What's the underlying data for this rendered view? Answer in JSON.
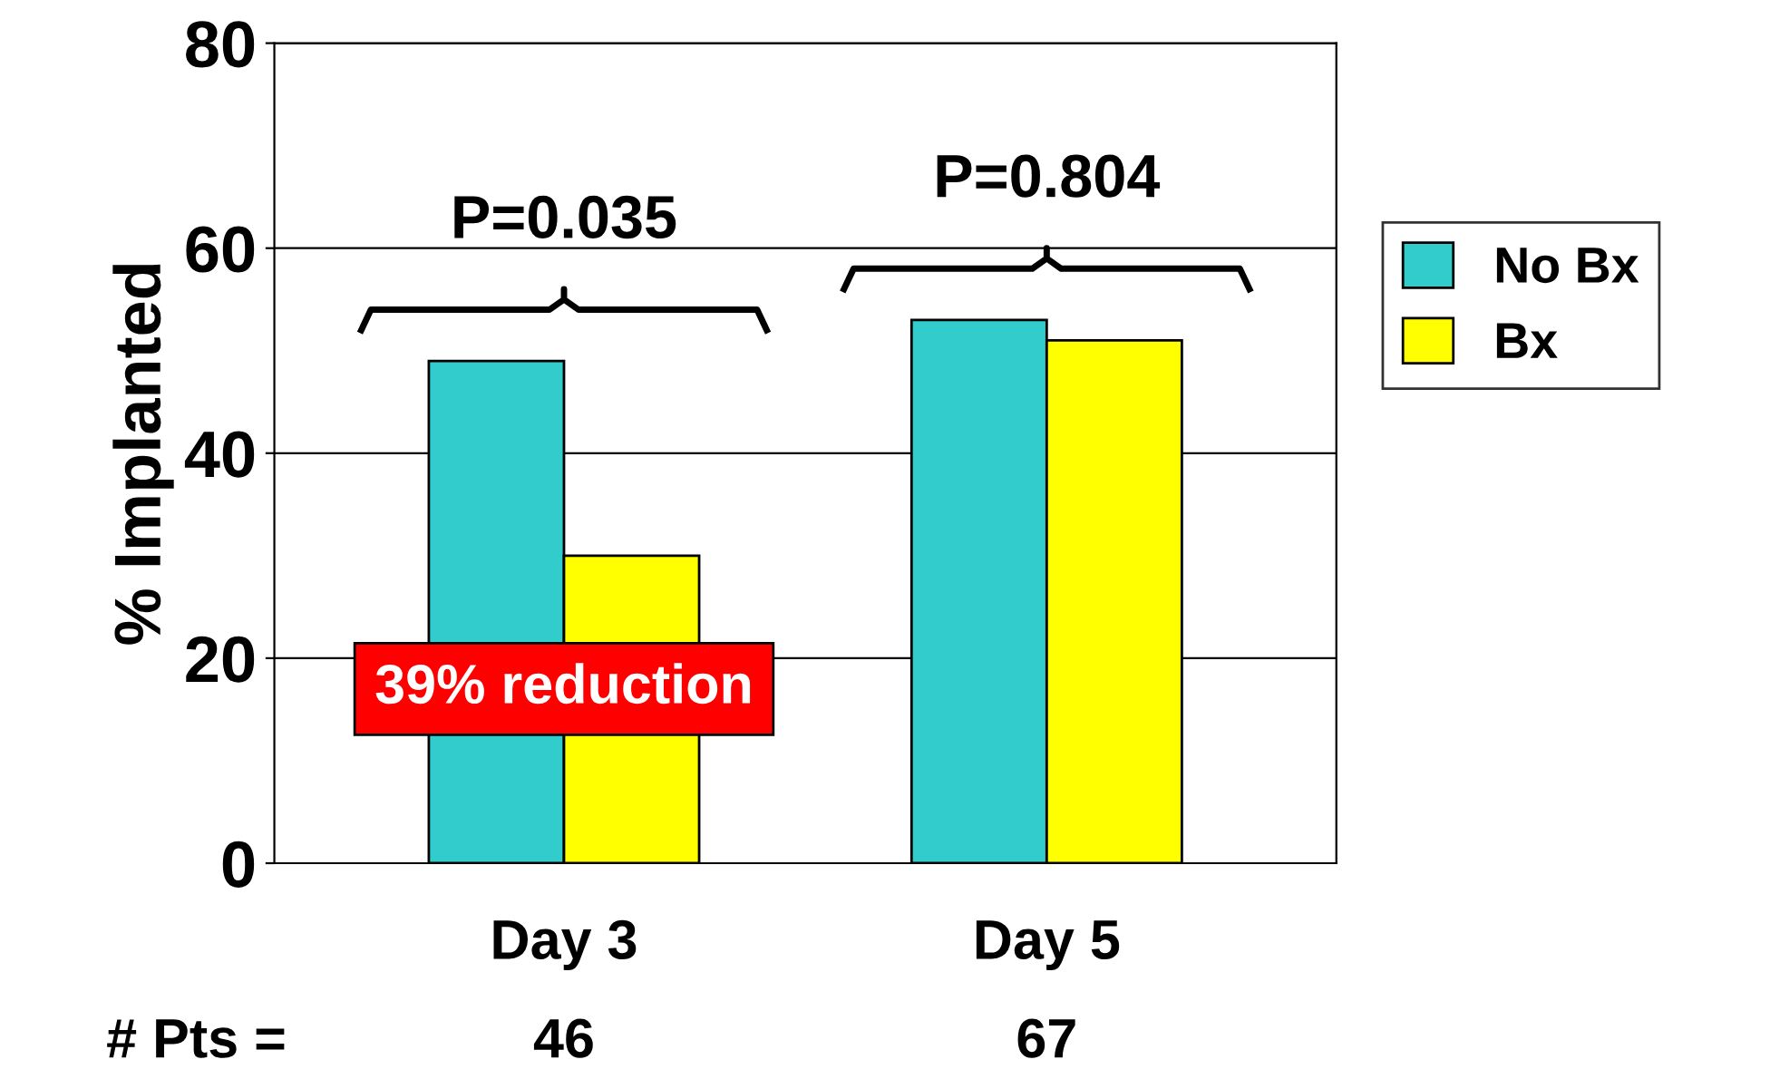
{
  "chart_data": {
    "type": "bar",
    "ylabel": "% Implanted",
    "categories": [
      "Day 3",
      "Day 5"
    ],
    "series": [
      {
        "name": "No Bx",
        "color": "#33cccc",
        "values": [
          49,
          53
        ]
      },
      {
        "name": "Bx",
        "color": "#ffff00",
        "values": [
          30,
          51
        ]
      }
    ],
    "ylim": [
      0,
      80
    ],
    "yticks": [
      0,
      20,
      40,
      60,
      80
    ],
    "grid": "y",
    "legend": "right",
    "annotations": [
      "P=0.035",
      "P=0.804",
      "39% reduction",
      "# Pts =",
      "46",
      "67"
    ]
  }
}
